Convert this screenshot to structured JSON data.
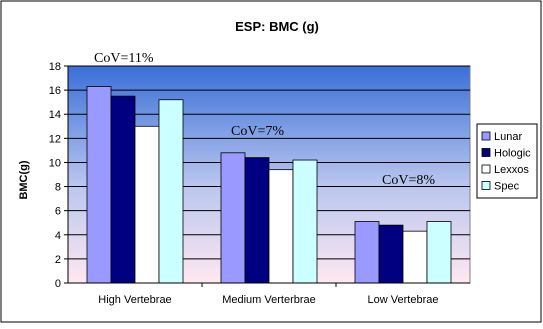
{
  "chart_data": {
    "type": "bar",
    "title": "ESP: BMC (g)",
    "xlabel": "",
    "ylabel": "BMC(g)",
    "ylim": [
      0,
      18
    ],
    "yticks": [
      0,
      2,
      4,
      6,
      8,
      10,
      12,
      14,
      16,
      18
    ],
    "grid": true,
    "legend_position": "right",
    "categories": [
      "High Vertebrae",
      "Medium Verterbrae",
      "Low Vertebrae"
    ],
    "series": [
      {
        "name": "Lunar",
        "values": [
          16.3,
          10.8,
          5.1
        ],
        "color": "#9999ff"
      },
      {
        "name": "Hologic",
        "values": [
          15.5,
          10.4,
          4.8
        ],
        "color": "#000080"
      },
      {
        "name": "Lexxos",
        "values": [
          13.0,
          9.4,
          4.3
        ],
        "color": "#ffffff"
      },
      {
        "name": "Spec",
        "values": [
          15.2,
          10.2,
          5.1
        ],
        "color": "#ccffff"
      }
    ],
    "annotations": [
      "CoV=11%",
      "CoV=7%",
      "CoV=8%"
    ],
    "plot_background_gradient": [
      "#3a6fd8",
      "#ffe8f0"
    ]
  }
}
